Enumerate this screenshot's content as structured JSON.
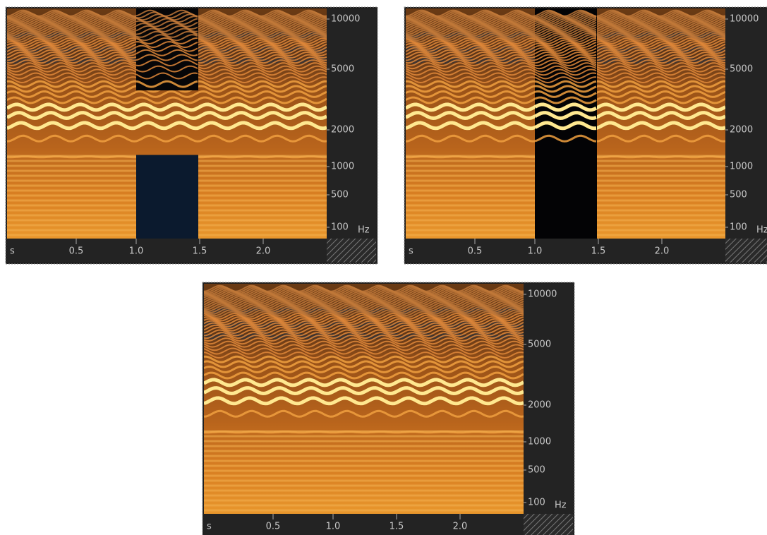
{
  "panels": [
    {
      "y_labels": [
        "10000",
        "5000",
        "2000",
        "1000",
        "500",
        "100"
      ],
      "y_unit": "Hz",
      "x_unit": "s",
      "x_labels": [
        "0.5",
        "1.0",
        "1.5",
        "2.0"
      ]
    },
    {
      "y_labels": [
        "10000",
        "5000",
        "2000",
        "1000",
        "500",
        "100"
      ],
      "y_unit": "Hz",
      "x_unit": "s",
      "x_labels": [
        "0.5",
        "1.0",
        "1.5",
        "2.0"
      ]
    },
    {
      "y_labels": [
        "10000",
        "5000",
        "2000",
        "1000",
        "500",
        "100"
      ],
      "y_unit": "Hz",
      "x_unit": "s",
      "x_labels": [
        "0.5",
        "1.0",
        "1.5",
        "2.0"
      ]
    }
  ]
}
